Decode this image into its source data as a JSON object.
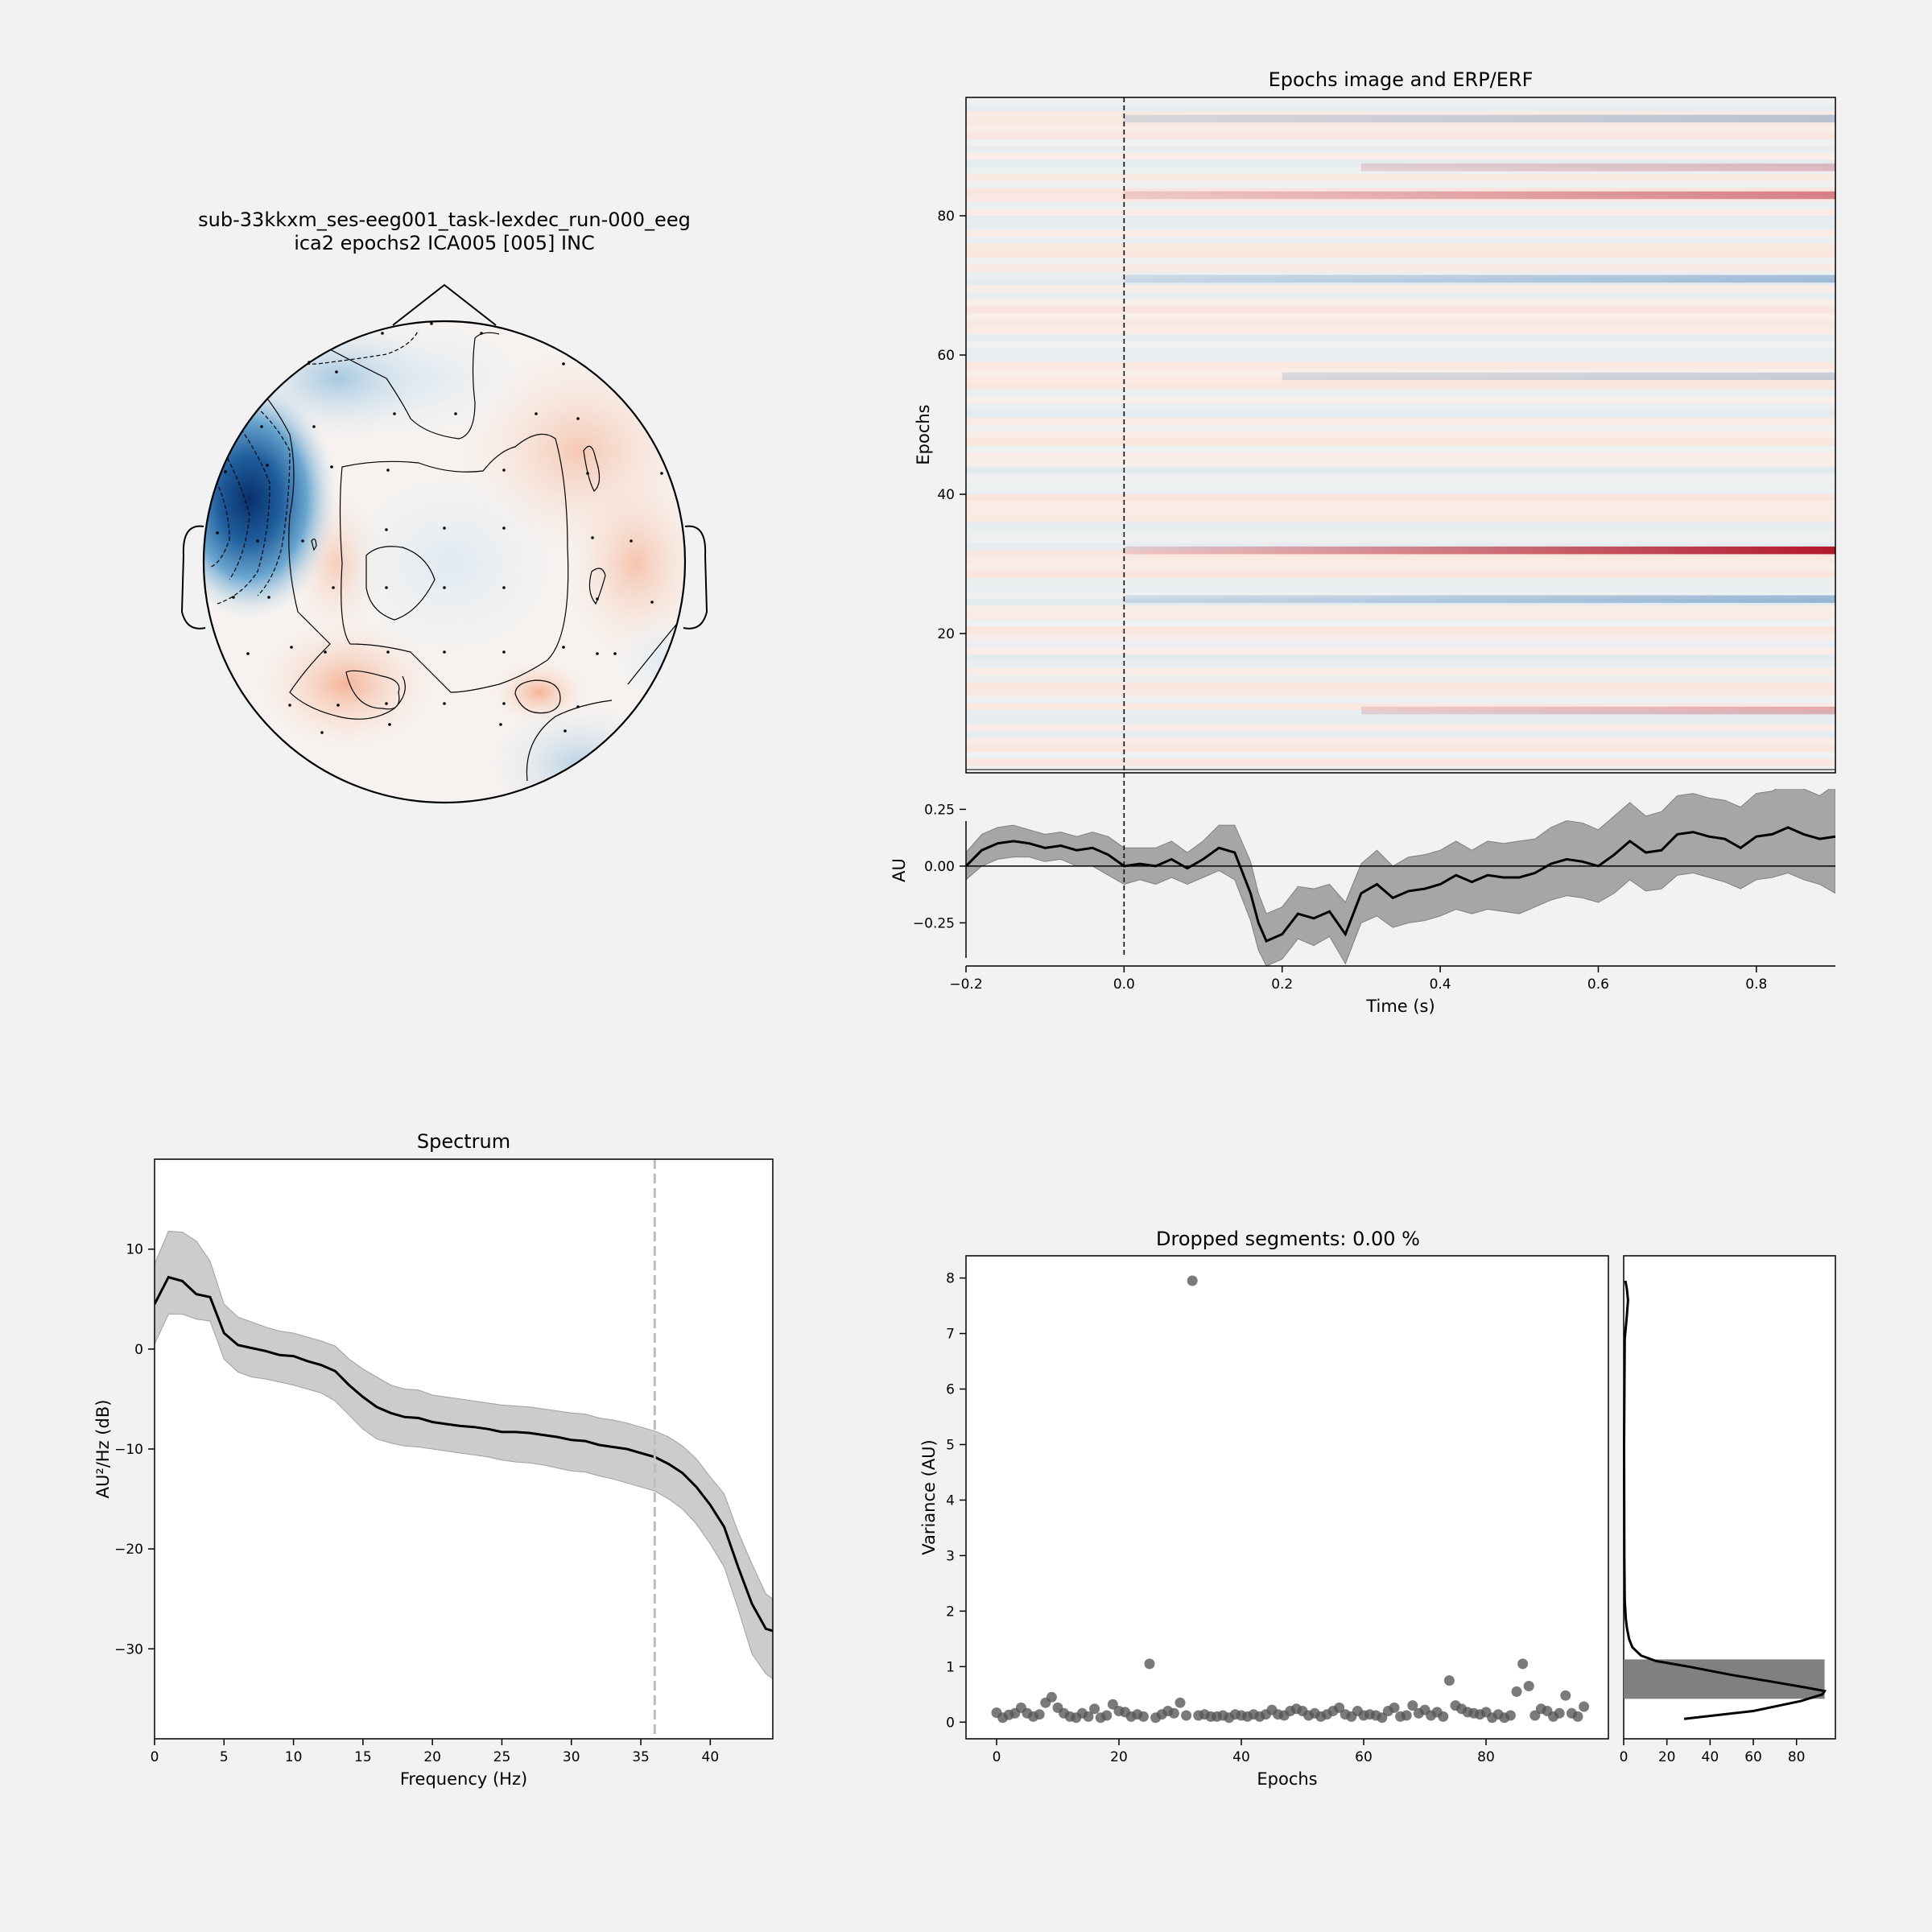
{
  "topomap": {
    "title_line1": "sub-33kkxm_ses-eeg001_task-lexdec_run-000_eeg",
    "title_line2": "ica2 epochs2 ICA005 [005] INC",
    "colors": {
      "negative": "#08306b",
      "mid_negative": "#4a90c2",
      "light": "#e8eef3",
      "positive": "#f4a582"
    }
  },
  "chart_data": [
    {
      "id": "epochs_image",
      "type": "heatmap",
      "title": "Epochs image and ERP/ERF",
      "ylabel": "Epochs",
      "yticks": [
        20,
        40,
        60,
        80
      ],
      "ylim": [
        0,
        97
      ],
      "xlim": [
        -0.2,
        0.9
      ],
      "n_epochs": 97,
      "highlight_rows": [
        {
          "epoch": 32,
          "value": 1.0,
          "onset": 0.0
        },
        {
          "epoch": 83,
          "value": 0.45,
          "onset": 0.0
        },
        {
          "epoch": 25,
          "value": -0.35,
          "onset": 0.0
        },
        {
          "epoch": 71,
          "value": -0.3,
          "onset": 0.0
        },
        {
          "epoch": 94,
          "value": -0.25,
          "onset": 0.0
        },
        {
          "epoch": 9,
          "value": 0.25,
          "onset": 0.3
        },
        {
          "epoch": 87,
          "value": 0.2,
          "onset": 0.3
        },
        {
          "epoch": 57,
          "value": -0.18,
          "onset": 0.2
        }
      ],
      "colors": {
        "negative": "#2166ac",
        "positive": "#b2182b",
        "zero": "#f7f7f7"
      }
    },
    {
      "id": "erp",
      "type": "line",
      "xlabel": "Time (s)",
      "ylabel": "AU",
      "xlim": [
        -0.2,
        0.9
      ],
      "ylim": [
        -0.44,
        0.34
      ],
      "xticks": [
        -0.2,
        0.0,
        0.2,
        0.4,
        0.6,
        0.8
      ],
      "xtick_labels": [
        "−0.2",
        "0.0",
        "0.2",
        "0.4",
        "0.6",
        "0.8"
      ],
      "yticks": [
        0.25,
        0.0,
        -0.25
      ],
      "ytick_labels": [
        "0.25",
        "0.00",
        "−0.25"
      ],
      "x": [
        -0.2,
        -0.18,
        -0.16,
        -0.14,
        -0.12,
        -0.1,
        -0.08,
        -0.06,
        -0.04,
        -0.02,
        0.0,
        0.02,
        0.04,
        0.06,
        0.08,
        0.1,
        0.12,
        0.14,
        0.16,
        0.17,
        0.18,
        0.2,
        0.22,
        0.24,
        0.26,
        0.28,
        0.3,
        0.32,
        0.34,
        0.36,
        0.38,
        0.4,
        0.42,
        0.44,
        0.46,
        0.48,
        0.5,
        0.52,
        0.54,
        0.56,
        0.58,
        0.6,
        0.62,
        0.64,
        0.66,
        0.68,
        0.7,
        0.72,
        0.74,
        0.76,
        0.78,
        0.8,
        0.82,
        0.84,
        0.86,
        0.88,
        0.9
      ],
      "mean": [
        0.0,
        0.07,
        0.1,
        0.11,
        0.1,
        0.08,
        0.09,
        0.07,
        0.08,
        0.05,
        0.0,
        0.01,
        0.0,
        0.03,
        -0.01,
        0.03,
        0.08,
        0.06,
        -0.12,
        -0.25,
        -0.33,
        -0.3,
        -0.21,
        -0.23,
        -0.2,
        -0.3,
        -0.12,
        -0.08,
        -0.14,
        -0.11,
        -0.1,
        -0.08,
        -0.04,
        -0.07,
        -0.04,
        -0.05,
        -0.05,
        -0.03,
        0.01,
        0.03,
        0.02,
        0.0,
        0.05,
        0.11,
        0.06,
        0.07,
        0.14,
        0.15,
        0.13,
        0.12,
        0.08,
        0.13,
        0.14,
        0.17,
        0.14,
        0.12,
        0.13
      ],
      "lower": [
        -0.06,
        0.0,
        0.03,
        0.04,
        0.04,
        0.02,
        0.03,
        0.0,
        0.0,
        -0.04,
        -0.08,
        -0.06,
        -0.08,
        -0.05,
        -0.08,
        -0.05,
        -0.02,
        -0.06,
        -0.24,
        -0.37,
        -0.44,
        -0.41,
        -0.32,
        -0.35,
        -0.31,
        -0.43,
        -0.25,
        -0.22,
        -0.27,
        -0.25,
        -0.24,
        -0.22,
        -0.19,
        -0.21,
        -0.19,
        -0.2,
        -0.21,
        -0.18,
        -0.15,
        -0.13,
        -0.14,
        -0.16,
        -0.12,
        -0.06,
        -0.11,
        -0.1,
        -0.04,
        -0.03,
        -0.05,
        -0.07,
        -0.1,
        -0.06,
        -0.05,
        -0.03,
        -0.06,
        -0.08,
        -0.12
      ],
      "upper": [
        0.06,
        0.14,
        0.17,
        0.18,
        0.16,
        0.14,
        0.15,
        0.13,
        0.15,
        0.13,
        0.08,
        0.08,
        0.08,
        0.11,
        0.06,
        0.11,
        0.18,
        0.18,
        0.02,
        -0.12,
        -0.21,
        -0.18,
        -0.09,
        -0.1,
        -0.08,
        -0.16,
        0.01,
        0.07,
        0.0,
        0.04,
        0.05,
        0.07,
        0.11,
        0.07,
        0.11,
        0.1,
        0.11,
        0.12,
        0.17,
        0.2,
        0.19,
        0.16,
        0.22,
        0.28,
        0.22,
        0.24,
        0.31,
        0.32,
        0.3,
        0.29,
        0.26,
        0.32,
        0.33,
        0.37,
        0.34,
        0.31,
        0.36
      ]
    },
    {
      "id": "spectrum",
      "type": "line",
      "title": "Spectrum",
      "xlabel": "Frequency (Hz)",
      "ylabel": "AU²/Hz (dB)",
      "xlim": [
        0,
        44.5
      ],
      "ylim": [
        -39,
        19
      ],
      "xticks": [
        0,
        5,
        10,
        15,
        20,
        25,
        30,
        35,
        40
      ],
      "yticks": [
        10,
        0,
        -10,
        -20,
        -30
      ],
      "ytick_labels": [
        "10",
        "0",
        "−10",
        "−20",
        "−30"
      ],
      "vline_x": 36,
      "x": [
        0,
        1,
        2,
        3,
        4,
        5,
        6,
        7,
        8,
        9,
        10,
        11,
        12,
        13,
        14,
        15,
        16,
        17,
        18,
        19,
        20,
        21,
        22,
        23,
        24,
        25,
        26,
        27,
        28,
        29,
        30,
        31,
        32,
        33,
        34,
        35,
        36,
        37,
        38,
        39,
        40,
        41,
        42,
        43,
        44,
        44.5
      ],
      "mean": [
        4.5,
        7.2,
        6.8,
        5.5,
        5.2,
        1.6,
        0.4,
        0.1,
        -0.2,
        -0.6,
        -0.7,
        -1.2,
        -1.6,
        -2.2,
        -3.6,
        -4.8,
        -5.8,
        -6.4,
        -6.8,
        -6.9,
        -7.3,
        -7.5,
        -7.7,
        -7.8,
        -8.0,
        -8.3,
        -8.3,
        -8.4,
        -8.6,
        -8.8,
        -9.1,
        -9.2,
        -9.6,
        -9.8,
        -10.0,
        -10.4,
        -10.8,
        -11.5,
        -12.4,
        -13.8,
        -15.6,
        -17.8,
        -21.8,
        -25.5,
        -28.0,
        -28.2
      ],
      "lower": [
        0.5,
        3.5,
        3.5,
        3.0,
        2.8,
        -1.0,
        -2.3,
        -2.8,
        -3.0,
        -3.3,
        -3.6,
        -4.0,
        -4.4,
        -5.2,
        -6.6,
        -8.0,
        -9.0,
        -9.4,
        -9.7,
        -9.8,
        -10.0,
        -10.2,
        -10.4,
        -10.6,
        -10.8,
        -11.1,
        -11.3,
        -11.4,
        -11.6,
        -11.9,
        -12.2,
        -12.3,
        -12.7,
        -13.0,
        -13.4,
        -13.8,
        -14.2,
        -15.0,
        -16.0,
        -17.5,
        -19.5,
        -21.8,
        -26.0,
        -30.5,
        -32.5,
        -33.0
      ],
      "upper": [
        8.5,
        11.8,
        11.7,
        10.8,
        8.8,
        4.5,
        3.2,
        2.7,
        2.2,
        1.8,
        1.6,
        1.2,
        0.8,
        0.3,
        -1.0,
        -2.0,
        -2.8,
        -3.6,
        -4.0,
        -4.1,
        -4.6,
        -4.8,
        -5.0,
        -5.2,
        -5.4,
        -5.6,
        -5.7,
        -5.8,
        -6.0,
        -6.2,
        -6.4,
        -6.5,
        -6.9,
        -7.1,
        -7.4,
        -7.8,
        -8.2,
        -8.8,
        -9.7,
        -11.0,
        -12.8,
        -14.5,
        -18.3,
        -21.5,
        -24.5,
        -25.0
      ]
    },
    {
      "id": "variance",
      "type": "scatter",
      "title": "Dropped segments: 0.00 %",
      "xlabel": "Epochs",
      "ylabel": "Variance (AU)",
      "xlim": [
        -5,
        100
      ],
      "ylim": [
        -0.3,
        8.4
      ],
      "xticks": [
        0,
        20,
        40,
        60,
        80
      ],
      "yticks": [
        0,
        1,
        2,
        3,
        4,
        5,
        6,
        7,
        8
      ],
      "x": [
        0,
        1,
        2,
        3,
        4,
        5,
        6,
        7,
        8,
        9,
        10,
        11,
        12,
        13,
        14,
        15,
        16,
        17,
        18,
        19,
        20,
        21,
        22,
        23,
        24,
        25,
        26,
        27,
        28,
        29,
        30,
        31,
        32,
        33,
        34,
        35,
        36,
        37,
        38,
        39,
        40,
        41,
        42,
        43,
        44,
        45,
        46,
        47,
        48,
        49,
        50,
        51,
        52,
        53,
        54,
        55,
        56,
        57,
        58,
        59,
        60,
        61,
        62,
        63,
        64,
        65,
        66,
        67,
        68,
        69,
        70,
        71,
        72,
        73,
        74,
        75,
        76,
        77,
        78,
        79,
        80,
        81,
        82,
        83,
        84,
        85,
        86,
        87,
        88,
        89,
        90,
        91,
        92,
        93,
        94,
        95,
        96
      ],
      "y": [
        0.17,
        0.08,
        0.13,
        0.16,
        0.26,
        0.16,
        0.1,
        0.14,
        0.35,
        0.45,
        0.26,
        0.16,
        0.1,
        0.08,
        0.16,
        0.1,
        0.24,
        0.08,
        0.12,
        0.32,
        0.2,
        0.18,
        0.1,
        0.14,
        0.1,
        1.05,
        0.08,
        0.14,
        0.2,
        0.16,
        0.35,
        0.12,
        7.95,
        0.12,
        0.14,
        0.1,
        0.1,
        0.12,
        0.08,
        0.14,
        0.12,
        0.1,
        0.14,
        0.1,
        0.14,
        0.22,
        0.14,
        0.12,
        0.2,
        0.24,
        0.2,
        0.12,
        0.16,
        0.1,
        0.14,
        0.2,
        0.26,
        0.14,
        0.1,
        0.2,
        0.12,
        0.14,
        0.12,
        0.08,
        0.2,
        0.26,
        0.1,
        0.12,
        0.3,
        0.16,
        0.22,
        0.12,
        0.18,
        0.1,
        0.75,
        0.3,
        0.24,
        0.18,
        0.16,
        0.14,
        0.18,
        0.08,
        0.14,
        0.08,
        0.12,
        0.55,
        1.05,
        0.65,
        0.12,
        0.24,
        0.2,
        0.1,
        0.16,
        0.48,
        0.16,
        0.1,
        0.28
      ],
      "marker_color": "#555555"
    },
    {
      "id": "variance_hist",
      "type": "bar",
      "xlim": [
        0,
        98
      ],
      "xticks": [
        0,
        20,
        40,
        60,
        80
      ],
      "bar": {
        "y0": 0.42,
        "y1": 1.13,
        "count": 93
      },
      "kde_y": [
        0.06,
        0.2,
        0.38,
        0.5,
        0.56,
        0.62,
        0.72,
        0.85,
        1.0,
        1.1,
        1.2,
        1.35,
        1.5,
        1.7,
        1.85,
        2.2,
        3.0,
        5.0,
        6.9,
        7.3,
        7.6,
        7.8,
        7.95
      ],
      "kde_x": [
        28,
        60,
        82,
        92,
        93,
        85,
        70,
        50,
        30,
        15,
        8,
        4,
        2.5,
        1.5,
        1.0,
        0.5,
        0.3,
        0.2,
        0.5,
        1.4,
        2.0,
        1.5,
        0.8
      ]
    }
  ]
}
